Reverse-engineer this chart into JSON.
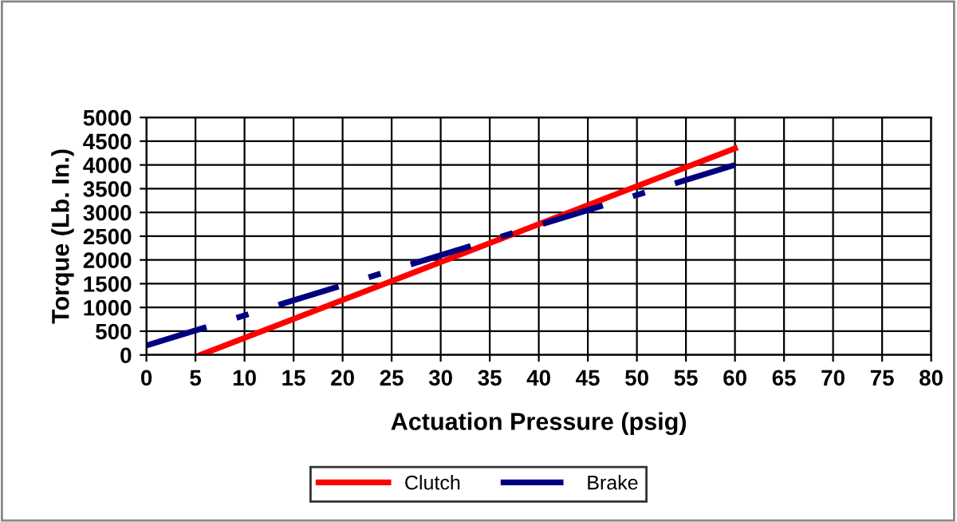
{
  "chart_data": {
    "type": "line",
    "xlabel": "Actuation Pressure (psig)",
    "ylabel": "Torque (Lb. In.)",
    "xlim": [
      0,
      80
    ],
    "xticks": [
      0,
      5,
      10,
      15,
      20,
      25,
      30,
      35,
      40,
      45,
      50,
      55,
      60,
      65,
      70,
      75,
      80
    ],
    "ylim": [
      0,
      5000
    ],
    "yticks": [
      0,
      500,
      1000,
      1500,
      2000,
      2500,
      3000,
      3500,
      4000,
      4500,
      5000
    ],
    "grid": true,
    "legend": "bottom",
    "marker": "none",
    "series": [
      {
        "name": "Clutch",
        "color": "#ff0000",
        "x": [
          5.5,
          60
        ],
        "values": [
          0,
          4350
        ],
        "line_style": "solid"
      },
      {
        "name": "Brake",
        "color": "#000080",
        "x": [
          0,
          60
        ],
        "values": [
          200,
          4000
        ],
        "line_style": "dashdot"
      }
    ]
  }
}
